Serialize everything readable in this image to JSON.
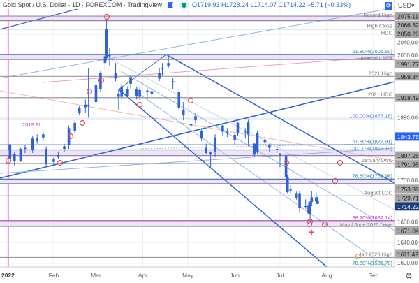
{
  "header": {
    "title": "Gold Spot / U.S. Dollar · 1D · FOREXCOM · TradingView",
    "ohlc": "O1719.93 H1728.24 L1714.07 C1714.22 −5.71 (−0.33%)",
    "currency": "USD",
    "currency_icon": "chevron-down-icon",
    "flag_icon": "flag-icon",
    "status_icon": "market-open-dot-icon",
    "sync_icon": "sync-icon",
    "settings_icon": "gear-icon"
  },
  "chart_data": {
    "type": "candlestick",
    "title": "Gold Spot / U.S. Dollar · 1D · FOREXCOM",
    "xlabel": "",
    "ylabel": "USD",
    "ylim": [
      1585,
      2090
    ],
    "x_ticks": [
      {
        "date": "2022-01-01",
        "label": "2022"
      },
      {
        "date": "2022-02-01",
        "label": "Feb"
      },
      {
        "date": "2022-03-01",
        "label": "Mar"
      },
      {
        "date": "2022-04-01",
        "label": "Apr"
      },
      {
        "date": "2022-05-01",
        "label": "May"
      },
      {
        "date": "2022-06-01",
        "label": "Jun"
      },
      {
        "date": "2022-07-01",
        "label": "Jul"
      },
      {
        "date": "2022-08-01",
        "label": "Aug"
      },
      {
        "date": "2022-09-01",
        "label": "Sep"
      }
    ],
    "y_ticks": [
      2040,
      2000,
      1880,
      1760,
      1680,
      1640,
      1600
    ],
    "grid": true,
    "candles": [
      [
        "2022-01-03",
        1829,
        1831,
        1800,
        1801
      ],
      [
        "2022-01-06",
        1810,
        1815,
        1788,
        1797
      ],
      [
        "2022-01-10",
        1797,
        1822,
        1795,
        1820
      ],
      [
        "2022-01-13",
        1820,
        1828,
        1812,
        1822
      ],
      [
        "2022-01-18",
        1818,
        1845,
        1812,
        1840
      ],
      [
        "2022-01-21",
        1840,
        1848,
        1830,
        1835
      ],
      [
        "2022-01-25",
        1842,
        1853,
        1835,
        1848
      ],
      [
        "2022-01-27",
        1820,
        1825,
        1788,
        1792
      ],
      [
        "2022-02-01",
        1795,
        1805,
        1790,
        1800
      ],
      [
        "2022-02-04",
        1805,
        1815,
        1800,
        1808
      ],
      [
        "2022-02-08",
        1820,
        1830,
        1815,
        1825
      ],
      [
        "2022-02-11",
        1827,
        1865,
        1820,
        1860
      ],
      [
        "2022-02-15",
        1870,
        1875,
        1850,
        1855
      ],
      [
        "2022-02-18",
        1890,
        1902,
        1885,
        1898
      ],
      [
        "2022-02-22",
        1900,
        1915,
        1890,
        1905
      ],
      [
        "2022-02-24",
        1905,
        1975,
        1880,
        1905
      ],
      [
        "2022-03-01",
        1910,
        1945,
        1905,
        1943
      ],
      [
        "2022-03-04",
        1935,
        1970,
        1930,
        1966
      ],
      [
        "2022-03-07",
        1985,
        2002,
        1965,
        1998
      ],
      [
        "2022-03-08",
        1995,
        2070,
        1990,
        2050
      ],
      [
        "2022-03-10",
        2000,
        2015,
        1980,
        1998
      ],
      [
        "2022-03-14",
        1965,
        1985,
        1950,
        1955
      ],
      [
        "2022-03-16",
        1920,
        1935,
        1895,
        1925
      ],
      [
        "2022-03-18",
        1940,
        1945,
        1915,
        1920
      ],
      [
        "2022-03-22",
        1935,
        1940,
        1920,
        1922
      ],
      [
        "2022-03-24",
        1945,
        1960,
        1935,
        1958
      ],
      [
        "2022-03-28",
        1935,
        1940,
        1915,
        1922
      ],
      [
        "2022-03-30",
        1920,
        1938,
        1915,
        1933
      ],
      [
        "2022-04-04",
        1930,
        1940,
        1915,
        1932
      ],
      [
        "2022-04-07",
        1925,
        1935,
        1920,
        1931
      ],
      [
        "2022-04-12",
        1955,
        1975,
        1950,
        1966
      ],
      [
        "2022-04-14",
        1975,
        1985,
        1960,
        1975
      ],
      [
        "2022-04-18",
        1985,
        1998,
        1975,
        1980
      ],
      [
        "2022-04-21",
        1950,
        1957,
        1935,
        1950
      ],
      [
        "2022-04-25",
        1930,
        1935,
        1895,
        1898
      ],
      [
        "2022-04-28",
        1885,
        1910,
        1875,
        1895
      ],
      [
        "2022-05-03",
        1865,
        1875,
        1850,
        1868
      ],
      [
        "2022-05-06",
        1875,
        1890,
        1868,
        1883
      ],
      [
        "2022-05-10",
        1855,
        1860,
        1835,
        1840
      ],
      [
        "2022-05-13",
        1822,
        1830,
        1810,
        1812
      ],
      [
        "2022-05-16",
        1810,
        1815,
        1785,
        1813
      ],
      [
        "2022-05-19",
        1815,
        1848,
        1805,
        1842
      ],
      [
        "2022-05-24",
        1853,
        1868,
        1845,
        1865
      ],
      [
        "2022-05-27",
        1850,
        1860,
        1843,
        1853
      ],
      [
        "2022-06-01",
        1837,
        1850,
        1828,
        1847
      ],
      [
        "2022-06-03",
        1870,
        1872,
        1845,
        1850
      ],
      [
        "2022-06-08",
        1852,
        1860,
        1840,
        1853
      ],
      [
        "2022-06-10",
        1848,
        1876,
        1825,
        1871
      ],
      [
        "2022-06-14",
        1830,
        1832,
        1805,
        1809
      ],
      [
        "2022-06-16",
        1815,
        1855,
        1810,
        1850
      ],
      [
        "2022-06-21",
        1838,
        1845,
        1830,
        1833
      ],
      [
        "2022-06-24",
        1822,
        1830,
        1815,
        1827
      ],
      [
        "2022-06-29",
        1820,
        1830,
        1812,
        1818
      ],
      [
        "2022-07-01",
        1807,
        1812,
        1785,
        1811
      ],
      [
        "2022-07-05",
        1807,
        1810,
        1765,
        1765
      ],
      [
        "2022-07-06",
        1765,
        1770,
        1735,
        1737
      ],
      [
        "2022-07-08",
        1740,
        1750,
        1735,
        1742
      ],
      [
        "2022-07-12",
        1735,
        1738,
        1722,
        1725
      ],
      [
        "2022-07-14",
        1735,
        1740,
        1697,
        1706
      ],
      [
        "2022-07-18",
        1710,
        1723,
        1705,
        1709
      ],
      [
        "2022-07-20",
        1711,
        1718,
        1695,
        1696
      ],
      [
        "2022-07-21",
        1695,
        1720,
        1680,
        1718
      ],
      [
        "2022-07-22",
        1718,
        1739,
        1710,
        1727
      ],
      [
        "2022-07-25",
        1727,
        1736,
        1716,
        1719
      ],
      [
        "2022-07-26",
        1719.93,
        1728.24,
        1714.07,
        1714.22
      ]
    ],
    "levels": [
      {
        "price": 2075.11,
        "label": "Record High",
        "tag": "2075.11",
        "line": "#9b7fb0"
      },
      {
        "price": 2066.32,
        "label": "",
        "tag": "2066.32",
        "line": "#9b7fb0"
      },
      {
        "price": 2050.2,
        "label": "High Close",
        "tag": "2050.20",
        "line": "#999999"
      },
      {
        "price": 2045,
        "label": "HDC",
        "tag": "",
        "line": ""
      },
      {
        "price": 2001.6,
        "label": "61.80%(2001.60)",
        "tag": "",
        "line": "#3a66c4",
        "label_color": "#2b8a9a"
      },
      {
        "price": 1991.77,
        "label": "Reversal Close",
        "tag": "1991.77",
        "line": "#9b7fb0"
      },
      {
        "price": 1959.34,
        "label": "2021 High",
        "tag": "1959.34",
        "line": "#999999"
      },
      {
        "price": 1918.49,
        "label": "2021 HDC",
        "tag": "1918.49",
        "line": "#999999"
      },
      {
        "price": 1877.18,
        "label": "100.00%(1877.18)",
        "tag": "",
        "line": "#4a7fd8",
        "label_color": "#4a7fd8"
      },
      {
        "price": 1843.75,
        "label": "",
        "tag": "1843.75",
        "line": "",
        "tag_bg": "#2962ff",
        "tag_fg": "#ffffff"
      },
      {
        "price": 1827.91,
        "label": "61.80%(1827.91)",
        "tag": "",
        "line": "#3a66c4",
        "label_color": "#2b8a9a"
      },
      {
        "price": 1818.1,
        "label": "100.00%(1818.10)",
        "tag": "",
        "line": "#4a7fd8",
        "label_color": "#4a7fd8"
      },
      {
        "price": 1807.26,
        "label": "",
        "tag": "1807.26",
        "line": "#9b7fb0"
      },
      {
        "price": 1791.95,
        "label": "January LWC",
        "tag": "1791.95",
        "line": "#999999"
      },
      {
        "price": 1761.98,
        "label": "78.60%(1761.98)",
        "tag": "",
        "line": "#3a66c4",
        "label_color": "#2b8a9a"
      },
      {
        "price": 1753.38,
        "label": "",
        "tag": "1753.38",
        "line": "#9b7fb0"
      },
      {
        "price": 1729.71,
        "label": "August LOC",
        "tag": "1729.71",
        "line": "#999999"
      },
      {
        "price": 1714.22,
        "label": "",
        "tag": "1714.22",
        "line": "",
        "tag_bg": "#1c3d7a",
        "tag_fg": "#ffffff"
      },
      {
        "price": 1682.14,
        "label": "38.20%(1682.14)",
        "tag": "",
        "line": "#a53cb0",
        "label_color": "#c040c8"
      },
      {
        "price": 1671.04,
        "label": "May / June 2020 Lows",
        "tag": "1671.04",
        "line": "#9b7fb0"
      },
      {
        "price": 1611.49,
        "label": "Jan 2020 High",
        "tag": "1611.49",
        "line": "#999999"
      },
      {
        "price": 1585.78,
        "label": "78.60%(1585.78)",
        "tag": "",
        "line": "#2b8a9a",
        "label_color": "#2b8a9a"
      }
    ],
    "annotations": [
      {
        "label": "2019 TL",
        "color": "#e040c0"
      }
    ],
    "colors": {
      "candle": "#2e62d9",
      "channel": "#2e62d9",
      "channel_inner": "#8fb3ee",
      "tl_pink": "#f09ad0",
      "marker": "#e05060"
    }
  }
}
